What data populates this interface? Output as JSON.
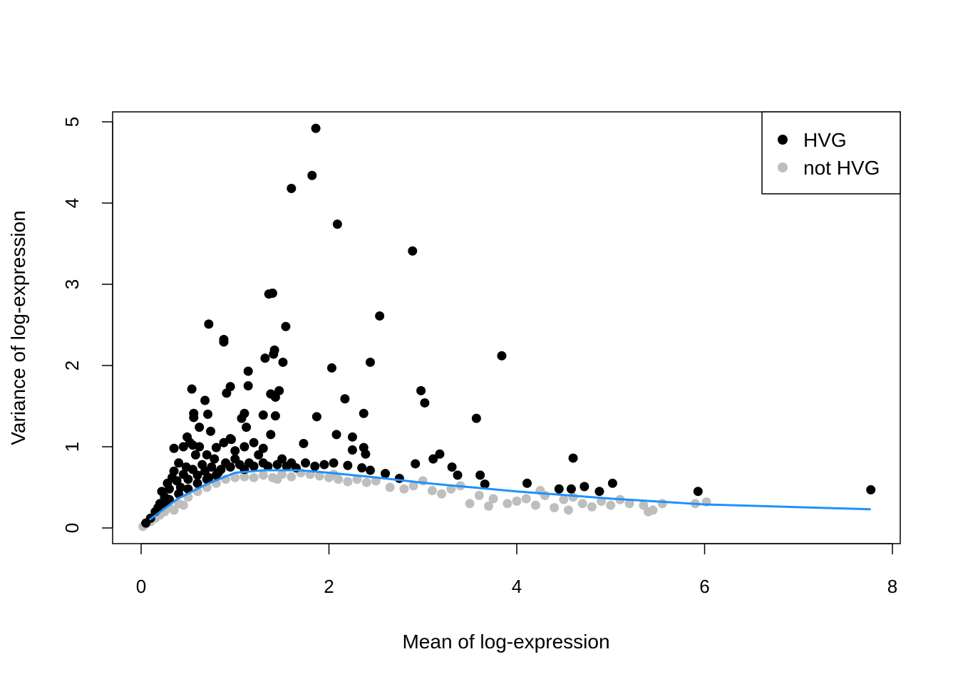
{
  "chart_data": {
    "type": "scatter",
    "title": "",
    "xlabel": "Mean of log-expression",
    "ylabel": "Variance of log-expression",
    "xlim": [
      -0.3,
      8.1
    ],
    "ylim": [
      -0.19,
      5.13
    ],
    "xticks": [
      "0",
      "2",
      "4",
      "6",
      "8"
    ],
    "yticks": [
      "0",
      "1",
      "2",
      "3",
      "4",
      "5"
    ],
    "grid": false,
    "legend": {
      "placement": "top-right",
      "entries": [
        "HVG",
        "not HVG"
      ]
    },
    "colors": {
      "HVG": "#000000",
      "not HVG": "#BEBEBE",
      "trend": "#1E90FF"
    },
    "series": [
      {
        "name": "not HVG",
        "points": [
          [
            0.02,
            0.02
          ],
          [
            0.05,
            0.05
          ],
          [
            0.1,
            0.08
          ],
          [
            0.15,
            0.12
          ],
          [
            0.2,
            0.16
          ],
          [
            0.25,
            0.2
          ],
          [
            0.3,
            0.25
          ],
          [
            0.35,
            0.22
          ],
          [
            0.4,
            0.3
          ],
          [
            0.45,
            0.28
          ],
          [
            0.5,
            0.38
          ],
          [
            0.6,
            0.45
          ],
          [
            0.7,
            0.5
          ],
          [
            0.8,
            0.55
          ],
          [
            0.9,
            0.6
          ],
          [
            1.0,
            0.62
          ],
          [
            1.1,
            0.63
          ],
          [
            1.2,
            0.62
          ],
          [
            1.3,
            0.65
          ],
          [
            1.4,
            0.62
          ],
          [
            1.45,
            0.6
          ],
          [
            1.5,
            0.66
          ],
          [
            1.6,
            0.63
          ],
          [
            1.7,
            0.68
          ],
          [
            1.8,
            0.66
          ],
          [
            1.9,
            0.64
          ],
          [
            2.0,
            0.62
          ],
          [
            2.05,
            0.66
          ],
          [
            2.1,
            0.6
          ],
          [
            2.2,
            0.57
          ],
          [
            2.3,
            0.6
          ],
          [
            2.4,
            0.56
          ],
          [
            2.5,
            0.58
          ],
          [
            2.65,
            0.5
          ],
          [
            2.8,
            0.48
          ],
          [
            2.9,
            0.52
          ],
          [
            3.0,
            0.58
          ],
          [
            3.1,
            0.46
          ],
          [
            3.2,
            0.42
          ],
          [
            3.3,
            0.48
          ],
          [
            3.4,
            0.52
          ],
          [
            3.5,
            0.3
          ],
          [
            3.6,
            0.4
          ],
          [
            3.7,
            0.27
          ],
          [
            3.75,
            0.36
          ],
          [
            3.9,
            0.3
          ],
          [
            4.0,
            0.33
          ],
          [
            4.1,
            0.36
          ],
          [
            4.2,
            0.28
          ],
          [
            4.25,
            0.46
          ],
          [
            4.3,
            0.4
          ],
          [
            4.4,
            0.25
          ],
          [
            4.5,
            0.35
          ],
          [
            4.55,
            0.22
          ],
          [
            4.6,
            0.38
          ],
          [
            4.7,
            0.3
          ],
          [
            4.8,
            0.26
          ],
          [
            4.9,
            0.33
          ],
          [
            5.0,
            0.28
          ],
          [
            5.1,
            0.35
          ],
          [
            5.2,
            0.3
          ],
          [
            5.35,
            0.28
          ],
          [
            5.4,
            0.2
          ],
          [
            5.45,
            0.22
          ],
          [
            5.55,
            0.3
          ],
          [
            5.9,
            0.3
          ],
          [
            6.02,
            0.32
          ]
        ]
      },
      {
        "name": "HVG",
        "points": [
          [
            1.86,
            4.92
          ],
          [
            1.82,
            4.34
          ],
          [
            1.6,
            4.18
          ],
          [
            2.09,
            3.74
          ],
          [
            2.89,
            3.41
          ],
          [
            1.36,
            2.88
          ],
          [
            1.4,
            2.89
          ],
          [
            2.54,
            2.61
          ],
          [
            0.72,
            2.51
          ],
          [
            1.54,
            2.48
          ],
          [
            0.88,
            2.32
          ],
          [
            0.88,
            2.29
          ],
          [
            1.42,
            2.19
          ],
          [
            1.41,
            2.14
          ],
          [
            3.84,
            2.12
          ],
          [
            1.32,
            2.09
          ],
          [
            1.51,
            2.04
          ],
          [
            2.44,
            2.04
          ],
          [
            2.03,
            1.97
          ],
          [
            1.14,
            1.93
          ],
          [
            0.54,
            1.71
          ],
          [
            0.95,
            1.74
          ],
          [
            0.91,
            1.66
          ],
          [
            1.14,
            1.75
          ],
          [
            1.47,
            1.69
          ],
          [
            1.38,
            1.65
          ],
          [
            2.98,
            1.69
          ],
          [
            2.17,
            1.59
          ],
          [
            0.68,
            1.57
          ],
          [
            3.02,
            1.54
          ],
          [
            1.43,
            1.61
          ],
          [
            0.56,
            1.41
          ],
          [
            0.56,
            1.36
          ],
          [
            0.71,
            1.4
          ],
          [
            1.1,
            1.41
          ],
          [
            1.07,
            1.35
          ],
          [
            1.3,
            1.39
          ],
          [
            1.43,
            1.38
          ],
          [
            1.87,
            1.37
          ],
          [
            2.37,
            1.41
          ],
          [
            3.57,
            1.35
          ],
          [
            1.12,
            1.24
          ],
          [
            0.62,
            1.24
          ],
          [
            0.74,
            1.19
          ],
          [
            2.08,
            1.15
          ],
          [
            0.35,
            0.98
          ],
          [
            0.49,
            1.12
          ],
          [
            2.25,
            1.12
          ],
          [
            0.96,
            1.09
          ],
          [
            0.8,
            0.99
          ],
          [
            1.38,
            1.15
          ],
          [
            1.73,
            1.04
          ],
          [
            2.37,
            0.99
          ],
          [
            2.25,
            0.96
          ],
          [
            2.39,
            0.91
          ],
          [
            3.18,
            0.91
          ],
          [
            3.11,
            0.85
          ],
          [
            2.92,
            0.79
          ],
          [
            4.6,
            0.86
          ],
          [
            3.31,
            0.75
          ],
          [
            4.11,
            0.55
          ],
          [
            5.02,
            0.55
          ],
          [
            4.72,
            0.51
          ],
          [
            4.58,
            0.48
          ],
          [
            4.45,
            0.48
          ],
          [
            4.88,
            0.45
          ],
          [
            5.93,
            0.45
          ],
          [
            7.77,
            0.47
          ],
          [
            3.37,
            0.65
          ],
          [
            3.61,
            0.65
          ],
          [
            3.66,
            0.54
          ],
          [
            2.75,
            0.61
          ],
          [
            2.6,
            0.67
          ],
          [
            2.44,
            0.71
          ],
          [
            0.05,
            0.06
          ],
          [
            0.1,
            0.12
          ],
          [
            0.15,
            0.2
          ],
          [
            0.2,
            0.3
          ],
          [
            0.22,
            0.45
          ],
          [
            0.25,
            0.38
          ],
          [
            0.28,
            0.55
          ],
          [
            0.3,
            0.48
          ],
          [
            0.33,
            0.62
          ],
          [
            0.35,
            0.7
          ],
          [
            0.38,
            0.58
          ],
          [
            0.4,
            0.8
          ],
          [
            0.42,
            0.5
          ],
          [
            0.45,
            0.66
          ],
          [
            0.48,
            0.75
          ],
          [
            0.5,
            0.6
          ],
          [
            0.52,
            1.05
          ],
          [
            0.55,
            0.72
          ],
          [
            0.58,
            0.9
          ],
          [
            0.6,
            0.65
          ],
          [
            0.62,
            1.0
          ],
          [
            0.65,
            0.78
          ],
          [
            0.68,
            0.7
          ],
          [
            0.7,
            0.9
          ],
          [
            0.72,
            0.62
          ],
          [
            0.75,
            0.75
          ],
          [
            0.78,
            0.85
          ],
          [
            0.82,
            0.68
          ],
          [
            0.85,
            0.72
          ],
          [
            0.9,
            0.8
          ],
          [
            0.95,
            0.75
          ],
          [
            1.0,
            0.85
          ],
          [
            1.05,
            0.78
          ],
          [
            1.1,
            0.72
          ],
          [
            1.15,
            0.8
          ],
          [
            1.2,
            0.76
          ],
          [
            1.25,
            0.9
          ],
          [
            1.3,
            0.8
          ],
          [
            1.35,
            0.76
          ],
          [
            1.45,
            0.78
          ],
          [
            1.5,
            0.85
          ],
          [
            1.55,
            0.76
          ],
          [
            1.6,
            0.8
          ],
          [
            1.65,
            0.74
          ],
          [
            1.75,
            0.8
          ],
          [
            1.85,
            0.76
          ],
          [
            1.95,
            0.78
          ],
          [
            2.05,
            0.8
          ],
          [
            2.2,
            0.77
          ],
          [
            2.35,
            0.74
          ],
          [
            0.3,
            0.35
          ],
          [
            0.25,
            0.3
          ],
          [
            0.18,
            0.25
          ],
          [
            0.4,
            0.42
          ],
          [
            0.5,
            0.48
          ],
          [
            0.6,
            0.55
          ],
          [
            0.7,
            0.6
          ],
          [
            0.8,
            0.65
          ],
          [
            1.0,
            0.95
          ],
          [
            1.1,
            1.0
          ],
          [
            0.88,
            1.05
          ],
          [
            0.95,
            1.1
          ],
          [
            1.2,
            1.05
          ],
          [
            1.3,
            0.98
          ],
          [
            0.45,
            1.0
          ],
          [
            0.55,
            1.02
          ]
        ]
      }
    ],
    "trend": [
      [
        0.09,
        0.1
      ],
      [
        0.39,
        0.36
      ],
      [
        0.7,
        0.54
      ],
      [
        1.0,
        0.68
      ],
      [
        1.31,
        0.71
      ],
      [
        1.68,
        0.71
      ],
      [
        2.0,
        0.68
      ],
      [
        2.52,
        0.62
      ],
      [
        3.05,
        0.55
      ],
      [
        4.0,
        0.45
      ],
      [
        5.02,
        0.36
      ],
      [
        6.0,
        0.29
      ],
      [
        7.77,
        0.23
      ]
    ]
  }
}
